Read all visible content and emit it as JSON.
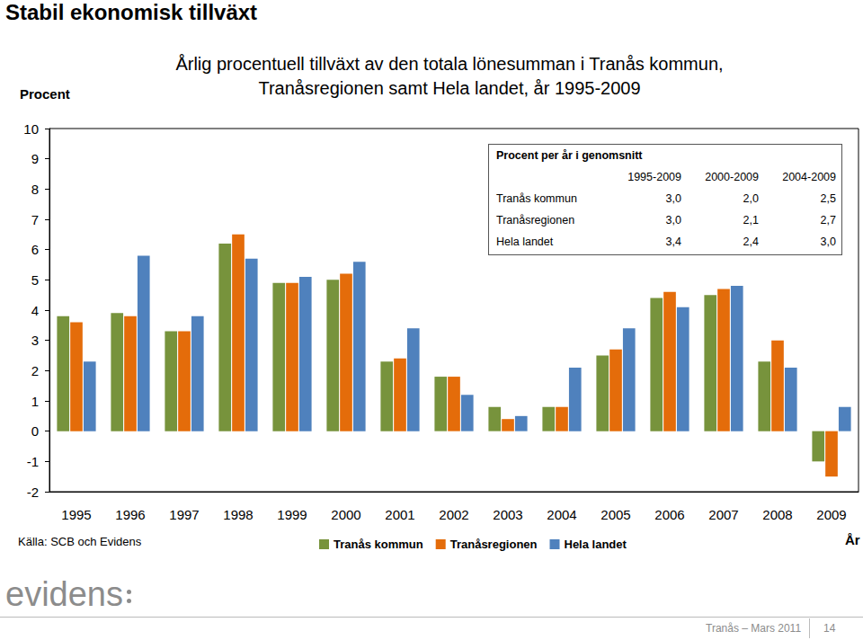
{
  "page": {
    "heading": "Stabil ekonomisk tillväxt",
    "footer": {
      "logo": "evidens",
      "place_date": "Tranås – Mars 2011",
      "page_number": "14"
    }
  },
  "chart_data": {
    "type": "bar",
    "title": "Årlig procentuell tillväxt av den totala lönesumman i Tranås kommun,\nTranåsregionen samt Hela landet, år 1995-2009",
    "y_label": "Procent",
    "x_label": "År",
    "annotations": [
      "Källa: SCB och Evidens"
    ],
    "categories": [
      "1995",
      "1996",
      "1997",
      "1998",
      "1999",
      "2000",
      "2001",
      "2002",
      "2003",
      "2004",
      "2005",
      "2006",
      "2007",
      "2008",
      "2009"
    ],
    "series": [
      {
        "name": "Tranås kommun",
        "color": "#77933c",
        "values": [
          3.8,
          3.9,
          3.3,
          6.2,
          4.9,
          5.0,
          2.3,
          1.8,
          0.8,
          0.8,
          2.5,
          4.4,
          4.5,
          2.3,
          -1.0
        ]
      },
      {
        "name": "Tranåsregionen",
        "color": "#e46c0a",
        "values": [
          3.6,
          3.8,
          3.3,
          6.5,
          4.9,
          5.2,
          2.4,
          1.8,
          0.4,
          0.8,
          2.7,
          4.6,
          4.7,
          3.0,
          -1.5
        ]
      },
      {
        "name": "Hela landet",
        "color": "#4f81bd",
        "values": [
          2.3,
          5.8,
          3.8,
          5.7,
          5.1,
          5.6,
          3.4,
          1.2,
          0.5,
          2.1,
          3.4,
          4.1,
          4.8,
          2.1,
          0.8
        ]
      }
    ],
    "ylim": [
      -2,
      10
    ],
    "yticks": [
      -2,
      -1,
      0,
      1,
      2,
      3,
      4,
      5,
      6,
      7,
      8,
      9,
      10
    ],
    "grid": false,
    "legend": "bottom"
  },
  "summary_table": {
    "title": "Procent per år i genomsnitt",
    "columns": [
      "1995-2009",
      "2000-2009",
      "2004-2009"
    ],
    "rows": [
      [
        "Tranås kommun",
        "3,0",
        "2,0",
        "2,5"
      ],
      [
        "Tranåsregionen",
        "3,0",
        "2,1",
        "2,7"
      ],
      [
        "Hela landet",
        "3,4",
        "2,4",
        "3,0"
      ]
    ]
  }
}
